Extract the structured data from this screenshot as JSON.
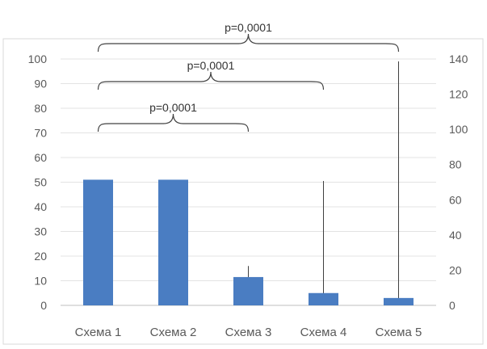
{
  "chart_data": {
    "type": "bar",
    "categories": [
      "Схема 1",
      "Схема 2",
      "Схема 3",
      "Схема 4",
      "Схема 5"
    ],
    "values": [
      51,
      51,
      11.5,
      5,
      3
    ],
    "error_upper": [
      51,
      51,
      16,
      50.5,
      99
    ],
    "ylim": [
      0,
      100
    ],
    "yticks": [
      0,
      10,
      20,
      30,
      40,
      50,
      60,
      70,
      80,
      90,
      100
    ],
    "y2lim": [
      0,
      140
    ],
    "y2ticks": [
      0,
      20,
      40,
      60,
      80,
      100,
      120,
      140
    ],
    "grid": true,
    "bar_color": "#4a7dc2",
    "annotations": [
      {
        "text": "p=0,0001",
        "from": 0,
        "to": 2
      },
      {
        "text": "p=0,0001",
        "from": 0,
        "to": 3
      },
      {
        "text": "p=0,0001",
        "from": 0,
        "to": 4
      }
    ]
  }
}
